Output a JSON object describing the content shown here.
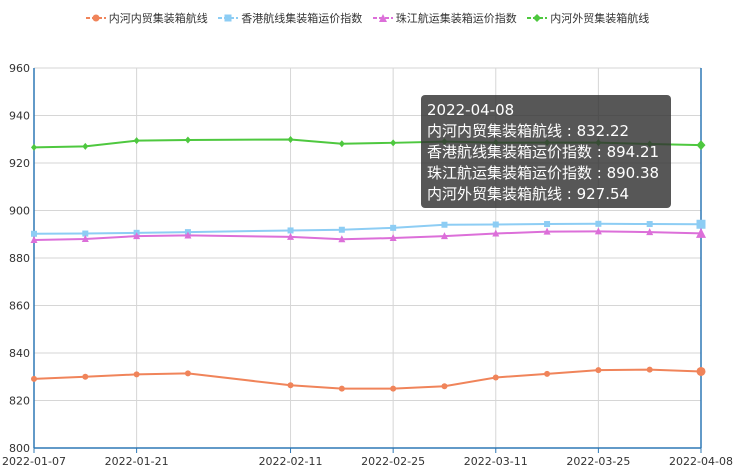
{
  "chart_data": {
    "type": "line",
    "x": [
      "2022-01-07",
      "2022-01-14",
      "2022-01-21",
      "2022-01-28",
      "2022-02-11",
      "2022-02-18",
      "2022-02-25",
      "2022-03-04",
      "2022-03-11",
      "2022-03-18",
      "2022-03-25",
      "2022-04-01",
      "2022-04-08"
    ],
    "x_tick_labels": [
      "2022-01-07",
      "2022-01-21",
      "2022-02-11",
      "2022-02-25",
      "2022-03-11",
      "2022-03-25",
      "2022-04-08"
    ],
    "y_ticks": [
      800,
      820,
      840,
      860,
      880,
      900,
      920,
      940,
      960
    ],
    "ylim": [
      800,
      960
    ],
    "grid": true,
    "legend_position": "top",
    "series": [
      {
        "name": "内河内贸集装箱航线",
        "color": "#f0845a",
        "marker": "circle",
        "values": [
          829.1,
          830.0,
          831.0,
          831.4,
          826.4,
          825.0,
          825.0,
          826.0,
          829.7,
          831.2,
          832.8,
          833.0,
          832.22
        ]
      },
      {
        "name": "香港航线集装箱运价指数",
        "color": "#8dcdf4",
        "marker": "square",
        "values": [
          890.2,
          890.3,
          890.6,
          890.9,
          891.6,
          891.9,
          892.7,
          894.0,
          894.1,
          894.3,
          894.4,
          894.3,
          894.21
        ]
      },
      {
        "name": "珠江航运集装箱运价指数",
        "color": "#dc6fd9",
        "marker": "triangle",
        "values": [
          887.6,
          888.0,
          889.2,
          889.5,
          888.9,
          887.9,
          888.4,
          889.2,
          890.3,
          891.1,
          891.2,
          890.9,
          890.38
        ]
      },
      {
        "name": "内河外贸集装箱航线",
        "color": "#4ec83f",
        "marker": "diamond",
        "values": [
          926.6,
          927.0,
          929.4,
          929.7,
          929.9,
          928.1,
          928.5,
          929.0,
          928.6,
          928.6,
          928.6,
          928.0,
          927.54
        ]
      }
    ]
  },
  "tooltip": {
    "date": "2022-04-08",
    "lines": [
      "内河内贸集装箱航线 : 832.22",
      "香港航线集装箱运价指数 : 894.21",
      "珠江航运集装箱运价指数 : 890.38",
      "内河外贸集装箱航线 : 927.54"
    ]
  },
  "colors": {
    "axis": "#2f78b5",
    "grid": "#d6d6d6",
    "text": "#333333"
  }
}
